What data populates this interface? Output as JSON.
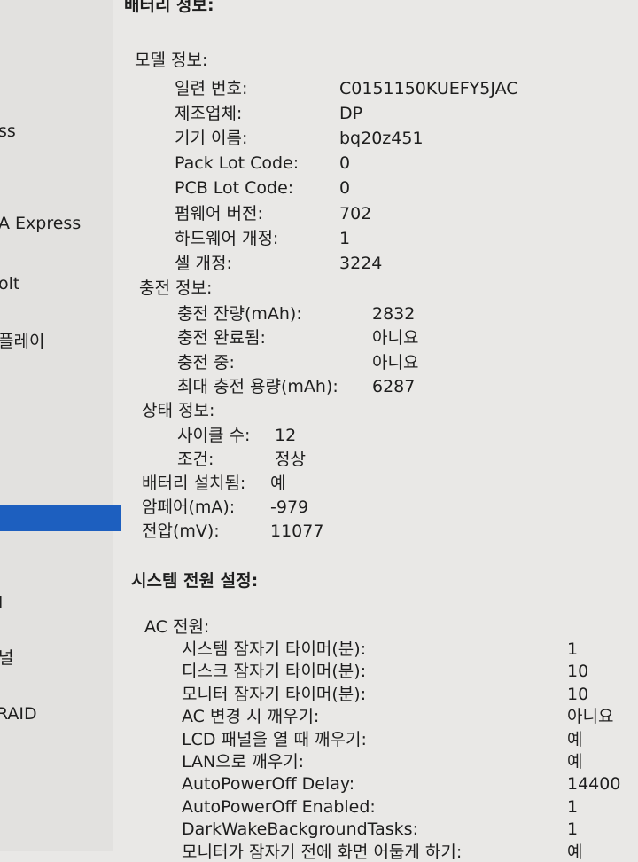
{
  "sidebar": [
    "ss",
    "A Express",
    "olt",
    "플레이",
    "l",
    "널",
    "RAID"
  ],
  "battery": {
    "title": "배터리 정보:",
    "model": {
      "title": "모델 정보:",
      "rows": [
        [
          "일련 번호:",
          "C0151150KUEFY5JAC"
        ],
        [
          "제조업체:",
          "DP"
        ],
        [
          "기기 이름:",
          "bq20z451"
        ],
        [
          "Pack Lot Code:",
          "0"
        ],
        [
          "PCB Lot Code:",
          "0"
        ],
        [
          "펌웨어 버전:",
          "702"
        ],
        [
          "하드웨어 개정:",
          "1"
        ],
        [
          "셀 개정:",
          "3224"
        ]
      ]
    },
    "charge": {
      "title": "충전 정보:",
      "rows": [
        [
          "충전 잔량(mAh):",
          "2832"
        ],
        [
          "충전 완료됨:",
          "아니요"
        ],
        [
          "충전 중:",
          "아니요"
        ],
        [
          "최대 충전 용량(mAh):",
          "6287"
        ]
      ]
    },
    "status": {
      "title": "상태 정보:",
      "rows": [
        [
          "사이클 수:",
          "12"
        ],
        [
          "조건:",
          "정상"
        ]
      ]
    },
    "rows": [
      [
        "배터리 설치됨:",
        "예"
      ],
      [
        "암페어(mA):",
        "-979"
      ],
      [
        "전압(mV):",
        "11077"
      ]
    ]
  },
  "power": {
    "title": "시스템 전원 설정:",
    "ac": {
      "title": "AC 전원:",
      "rows": [
        [
          "시스템 잠자기 타이머(분):",
          "1"
        ],
        [
          "디스크 잠자기 타이머(분):",
          "10"
        ],
        [
          "모니터 잠자기 타이머(분):",
          "10"
        ],
        [
          "AC 변경 시 깨우기:",
          "아니요"
        ],
        [
          "LCD 패널을 열 때 깨우기:",
          "예"
        ],
        [
          "LAN으로 깨우기:",
          "예"
        ],
        [
          "AutoPowerOff Delay:",
          "14400"
        ],
        [
          "AutoPowerOff Enabled:",
          "1"
        ],
        [
          "DarkWakeBackgroundTasks:",
          "1"
        ],
        [
          "모니터가 잠자기 전에 화면 어둡게 하기:",
          "예"
        ]
      ]
    }
  }
}
